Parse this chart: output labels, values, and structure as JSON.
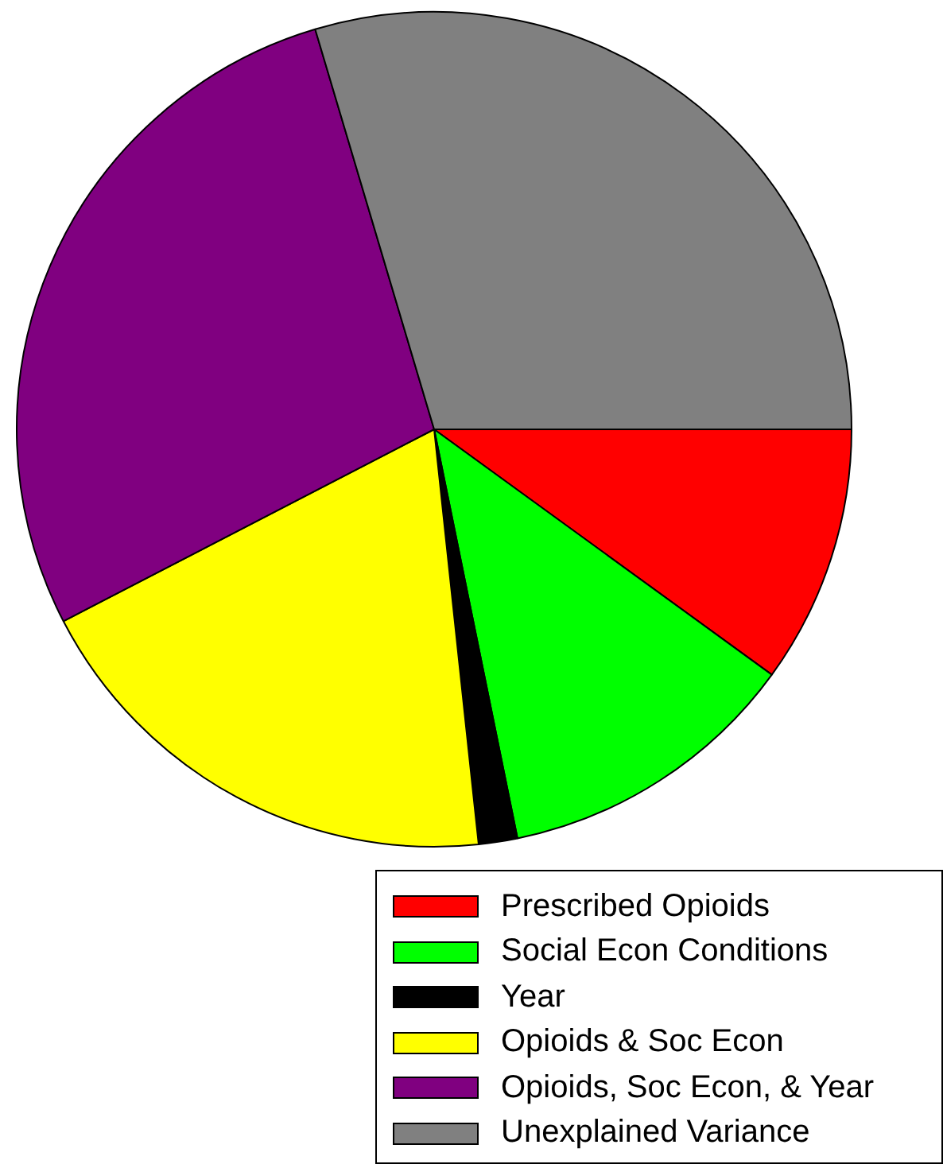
{
  "chart_data": {
    "type": "pie",
    "categories": [
      "Prescribed Opioids",
      "Social Econ Conditions",
      "Year",
      "Opioids & Soc Econ",
      "Opioids, Soc Econ, & Year",
      "Unexplained Variance"
    ],
    "values": [
      10,
      11.8,
      1.5,
      19.1,
      28,
      29.6
    ],
    "colors": [
      "#ff0000",
      "#00ff00",
      "#000000",
      "#ffff00",
      "#800080",
      "#808080"
    ],
    "legend": "bottom right"
  }
}
